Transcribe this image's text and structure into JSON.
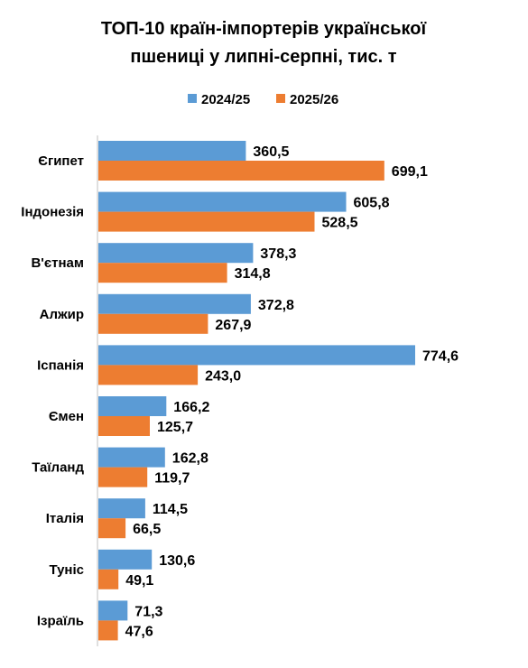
{
  "chart_data": {
    "type": "bar",
    "orientation": "horizontal",
    "title_lines": [
      "ТОП-10 країн-імпортерів української",
      "пшениці у липні-серпні, тис. т"
    ],
    "legend_position": "top",
    "grid": false,
    "xlim": [
      0,
      1000
    ],
    "categories": [
      "Єгипет",
      "Індонезія",
      "В'єтнам",
      "Алжир",
      "Іспанія",
      "Ємен",
      "Таїланд",
      "Італія",
      "Туніс",
      "Ізраїль"
    ],
    "series": [
      {
        "name": "2024/25",
        "color": "#5B9BD5",
        "values": [
          360.5,
          605.8,
          378.3,
          372.8,
          774.6,
          166.2,
          162.8,
          114.5,
          130.6,
          71.3
        ],
        "labels": [
          "360,5",
          "605,8",
          "378,3",
          "372,8",
          "774,6",
          "166,2",
          "162,8",
          "114,5",
          "130,6",
          "71,3"
        ]
      },
      {
        "name": "2025/26",
        "color": "#ED7D31",
        "values": [
          699.1,
          528.5,
          314.8,
          267.9,
          243.0,
          125.7,
          119.7,
          66.5,
          49.1,
          47.6
        ],
        "labels": [
          "699,1",
          "528,5",
          "314,8",
          "267,9",
          "243,0",
          "125,7",
          "119,7",
          "66,5",
          "49,1",
          "47,6"
        ]
      }
    ]
  }
}
